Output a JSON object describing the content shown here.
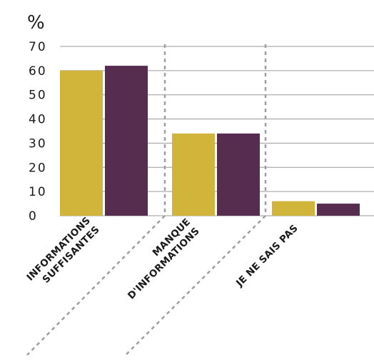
{
  "chart_data": {
    "type": "bar",
    "ylabel": "%",
    "ylim": [
      0,
      70
    ],
    "yticks": [
      0,
      10,
      20,
      30,
      40,
      50,
      60,
      70
    ],
    "categories": [
      [
        "INFORMATIONS",
        "SUFFISANTES"
      ],
      [
        "MANQUE",
        "D'INFORMATIONS"
      ],
      [
        "JE NE SAIS PAS"
      ]
    ],
    "series": [
      {
        "color": "#d1b43a",
        "values": [
          60,
          34,
          6
        ]
      },
      {
        "color": "#562c4f",
        "values": [
          62,
          34,
          5
        ]
      }
    ],
    "grid": true,
    "legend": "none"
  }
}
